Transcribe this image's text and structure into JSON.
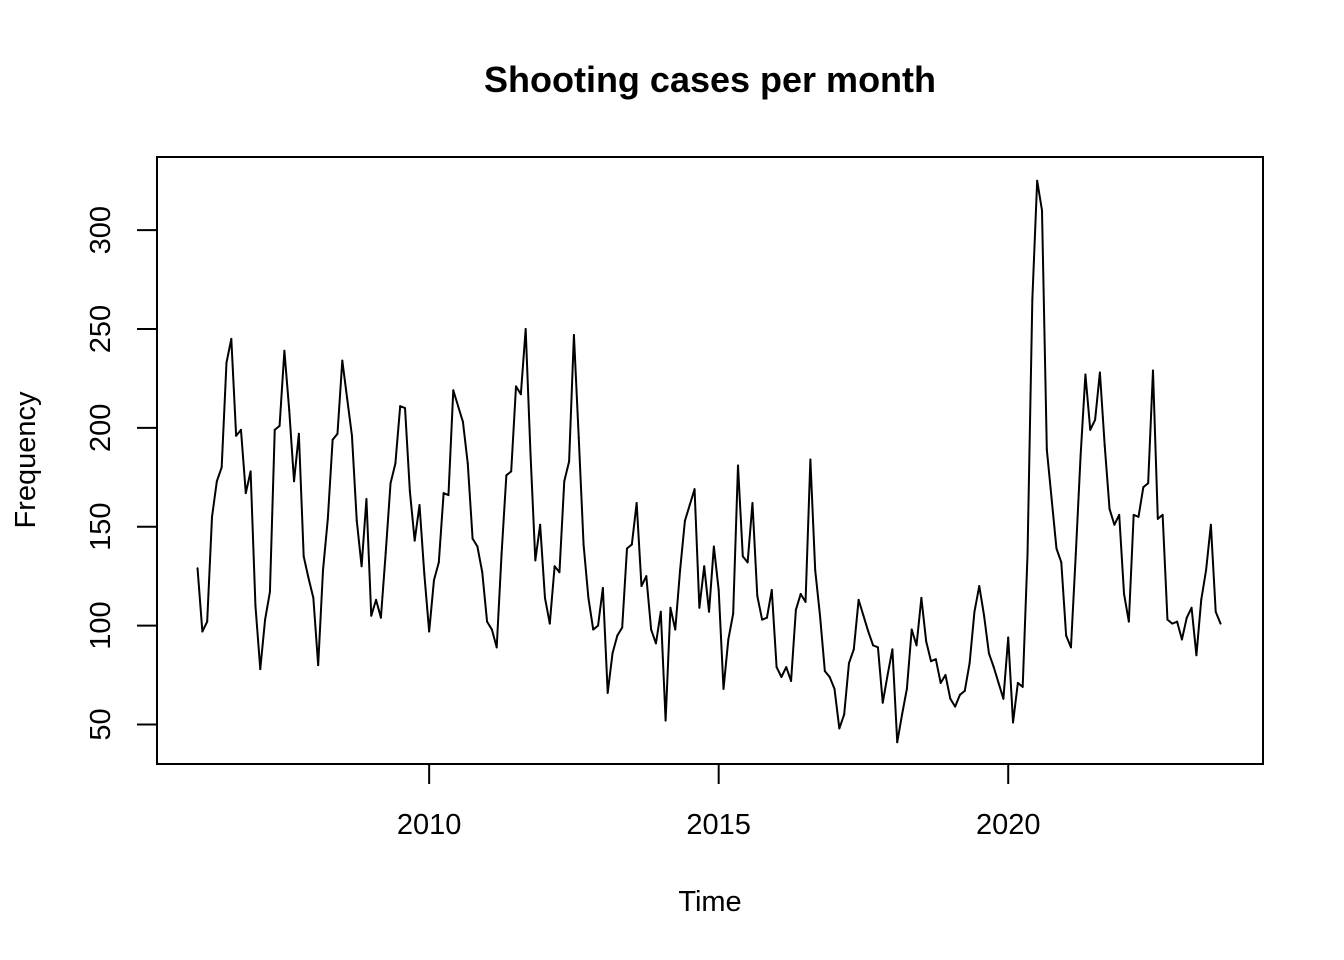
{
  "chart_data": {
    "type": "line",
    "title": "Shooting cases per month",
    "xlabel": "Time",
    "ylabel": "Frequency",
    "xlim": [
      2005.3,
      2024.4
    ],
    "ylim": [
      30,
      337
    ],
    "x_ticks": [
      2010,
      2015,
      2020
    ],
    "x_tick_labels": [
      "2010",
      "2015",
      "2020"
    ],
    "y_ticks": [
      50,
      100,
      150,
      200,
      250,
      300
    ],
    "y_tick_labels": [
      "50",
      "100",
      "150",
      "200",
      "250",
      "300"
    ],
    "grid": false,
    "line_color": "#000000",
    "start_year": 2006,
    "frequency": 12,
    "series": [
      {
        "values": [
          129,
          97,
          102,
          155,
          173,
          180,
          233,
          245,
          196,
          199,
          167,
          178,
          110,
          78,
          103,
          117,
          199,
          201,
          239,
          209,
          173,
          197,
          135,
          124,
          114,
          80,
          128,
          154,
          194,
          197,
          234,
          215,
          196,
          153,
          130,
          164,
          105,
          113,
          104,
          137,
          172,
          182,
          211,
          210,
          168,
          143,
          161,
          126,
          97,
          123,
          132,
          167,
          166,
          219,
          211,
          203,
          182,
          144,
          140,
          127,
          102,
          98,
          89,
          136,
          176,
          178,
          221,
          217,
          250,
          187,
          133,
          151,
          114,
          101,
          130,
          127,
          173,
          183,
          247,
          195,
          141,
          114,
          98,
          100,
          119,
          66,
          86,
          95,
          99,
          139,
          141,
          162,
          120,
          125,
          98,
          91,
          107,
          52,
          109,
          98,
          128,
          153,
          161,
          169,
          109,
          130,
          107,
          140,
          118,
          68,
          93,
          106,
          181,
          135,
          132,
          162,
          115,
          103,
          104,
          118,
          79,
          74,
          79,
          72,
          108,
          116,
          112,
          184,
          128,
          105,
          77,
          74,
          68,
          48,
          55,
          81,
          88,
          113,
          105,
          97,
          90,
          89,
          61,
          75,
          88,
          41,
          55,
          68,
          98,
          90,
          114,
          92,
          82,
          83,
          71,
          75,
          63,
          59,
          65,
          67,
          81,
          107,
          120,
          105,
          86,
          79,
          71,
          63,
          94,
          51,
          71,
          69,
          136,
          265,
          325,
          310,
          189,
          164,
          139,
          132,
          95,
          89,
          136,
          186,
          227,
          199,
          204,
          228,
          191,
          159,
          151,
          156,
          116,
          102,
          156,
          155,
          170,
          172,
          229,
          154,
          156,
          103,
          101,
          102,
          93,
          104,
          109,
          85,
          113,
          128,
          151,
          107,
          101
        ]
      }
    ]
  }
}
